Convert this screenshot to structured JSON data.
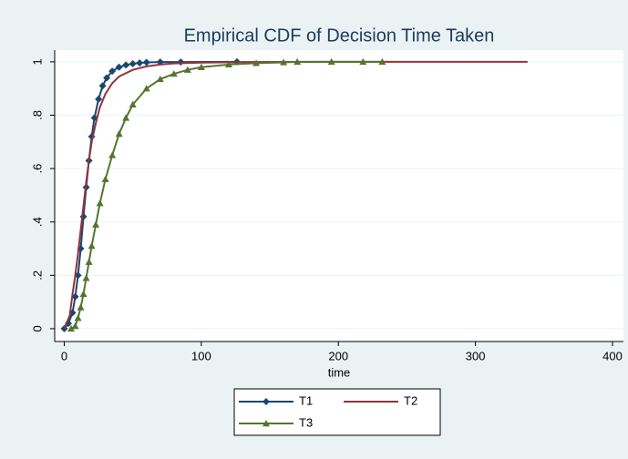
{
  "chart_data": {
    "type": "line",
    "title": "Empirical CDF of Decision Time Taken",
    "x_label": "time",
    "xlim": [
      -7,
      408
    ],
    "ylim": [
      -0.048,
      1.044
    ],
    "xticks": [
      0,
      100,
      200,
      300,
      400
    ],
    "yticks": [
      0,
      {
        "value": 0.2,
        "label": ".2"
      },
      {
        "value": 0.4,
        "label": ".4"
      },
      {
        "value": 0.6,
        "label": ".6"
      },
      {
        "value": 0.8,
        "label": ".8"
      },
      1
    ],
    "grid": true,
    "legend": "bottom",
    "series": [
      {
        "name": "T1",
        "color": "#1a476f",
        "marker": "diamond",
        "x": [
          0,
          3,
          6,
          8,
          10,
          12,
          14,
          16,
          18,
          20,
          22,
          25,
          28,
          31,
          35,
          40,
          45,
          50,
          55,
          60,
          70,
          85,
          126
        ],
        "values": [
          0,
          0.02,
          0.06,
          0.12,
          0.2,
          0.3,
          0.42,
          0.53,
          0.63,
          0.72,
          0.79,
          0.86,
          0.91,
          0.94,
          0.965,
          0.98,
          0.988,
          0.993,
          0.996,
          0.998,
          0.999,
          0.999,
          1
        ]
      },
      {
        "name": "T2",
        "color": "#90353b",
        "marker": "none",
        "x": [
          0,
          4,
          6,
          8,
          10,
          12,
          14,
          16,
          18,
          20,
          23,
          26,
          30,
          35,
          40,
          50,
          60,
          70,
          80,
          100,
          130,
          200,
          338
        ],
        "values": [
          0,
          0.05,
          0.13,
          0.2,
          0.28,
          0.37,
          0.46,
          0.55,
          0.63,
          0.7,
          0.77,
          0.83,
          0.88,
          0.92,
          0.945,
          0.97,
          0.983,
          0.99,
          0.994,
          0.997,
          0.999,
          1,
          1
        ]
      },
      {
        "name": "T3",
        "color": "#55752f",
        "marker": "triangle",
        "x": [
          5,
          8,
          10,
          12,
          14,
          16,
          18,
          20,
          23,
          26,
          30,
          35,
          40,
          45,
          50,
          60,
          70,
          80,
          90,
          100,
          120,
          140,
          160,
          170,
          195,
          218,
          232
        ],
        "values": [
          0,
          0.01,
          0.04,
          0.08,
          0.13,
          0.19,
          0.25,
          0.31,
          0.39,
          0.47,
          0.56,
          0.65,
          0.73,
          0.79,
          0.84,
          0.9,
          0.935,
          0.955,
          0.97,
          0.98,
          0.99,
          0.995,
          0.998,
          1,
          1,
          1,
          1
        ]
      }
    ]
  }
}
